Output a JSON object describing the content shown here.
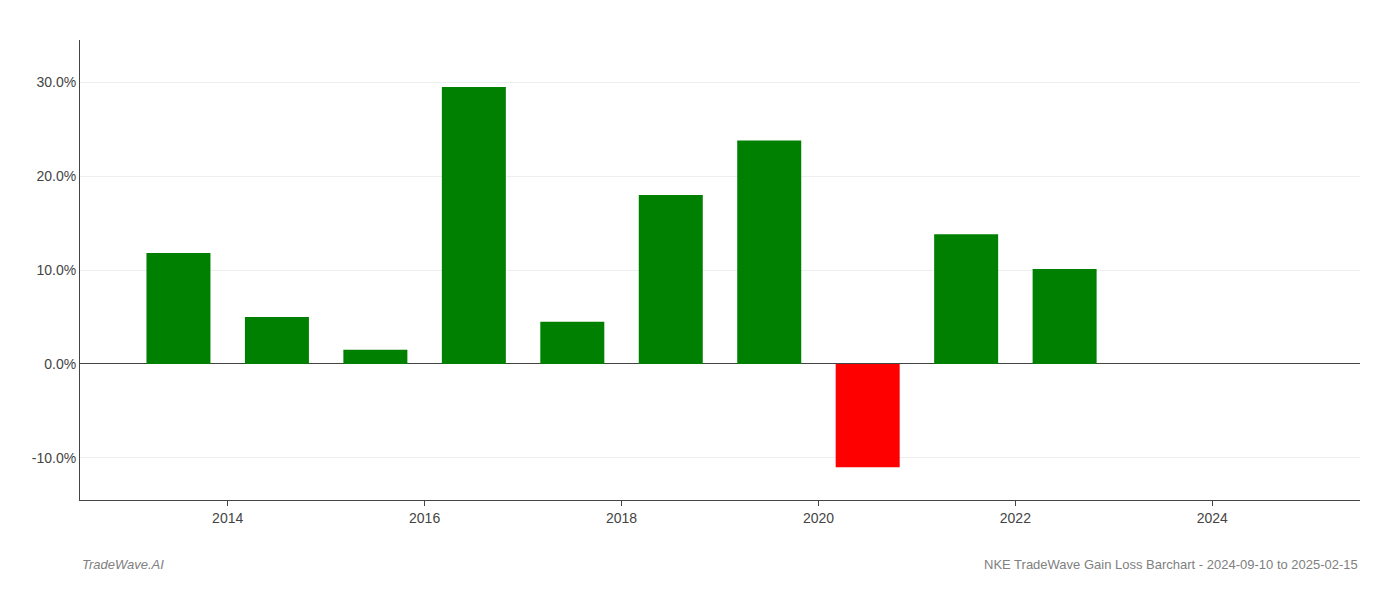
{
  "chart_data": {
    "type": "bar",
    "x": [
      2013.5,
      2014.5,
      2015.5,
      2016.5,
      2017.5,
      2018.5,
      2019.5,
      2020.5,
      2021.5,
      2022.5
    ],
    "values": [
      0.118,
      0.05,
      0.015,
      0.295,
      0.045,
      0.18,
      0.238,
      -0.11,
      0.138,
      0.101
    ],
    "colors": [
      "#008000",
      "#008000",
      "#008000",
      "#008000",
      "#008000",
      "#008000",
      "#008000",
      "#ff0000",
      "#008000",
      "#008000"
    ],
    "xlim": [
      2012.5,
      2025.5
    ],
    "xticks": [
      2014,
      2016,
      2018,
      2020,
      2022,
      2024
    ],
    "ylim": [
      -0.145,
      0.345
    ],
    "yticks": [
      {
        "value": -0.1,
        "label": "-10.0%"
      },
      {
        "value": 0.0,
        "label": "0.0%"
      },
      {
        "value": 0.1,
        "label": "10.0%"
      },
      {
        "value": 0.2,
        "label": "20.0%"
      },
      {
        "value": 0.3,
        "label": "30.0%"
      }
    ],
    "grid": true,
    "annotations": [
      "TradeWave.AI",
      "NKE TradeWave Gain Loss Barchart - 2024-09-10 to 2025-02-15"
    ]
  }
}
